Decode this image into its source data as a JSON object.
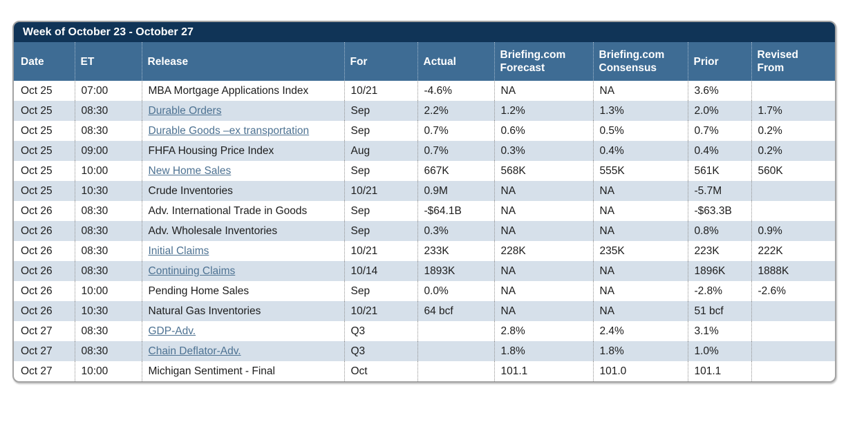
{
  "colors": {
    "title_bar": "#103457",
    "header_bg": "#3e6c94",
    "row_shaded": "#d6e0ea",
    "link": "#4d7292"
  },
  "table": {
    "title": "Week of October 23 - October 27",
    "columns": [
      "Date",
      "ET",
      "Release",
      "For",
      "Actual",
      "Briefing.com Forecast",
      "Briefing.com Consensus",
      "Prior",
      "Revised From"
    ],
    "rows": [
      {
        "date": "Oct 25",
        "et": "07:00",
        "release": "MBA Mortgage Applications Index",
        "is_link": false,
        "for": "10/21",
        "actual": "-4.6%",
        "forecast": "NA",
        "consensus": "NA",
        "prior": "3.6%",
        "revised": ""
      },
      {
        "date": "Oct 25",
        "et": "08:30",
        "release": "Durable Orders",
        "is_link": true,
        "for": "Sep",
        "actual": "2.2%",
        "forecast": "1.2%",
        "consensus": "1.3%",
        "prior": "2.0%",
        "revised": "1.7%"
      },
      {
        "date": "Oct 25",
        "et": "08:30",
        "release": "Durable Goods –ex transportation",
        "is_link": true,
        "for": "Sep",
        "actual": "0.7%",
        "forecast": "0.6%",
        "consensus": "0.5%",
        "prior": "0.7%",
        "revised": "0.2%"
      },
      {
        "date": "Oct 25",
        "et": "09:00",
        "release": "FHFA Housing Price Index",
        "is_link": false,
        "for": "Aug",
        "actual": "0.7%",
        "forecast": "0.3%",
        "consensus": "0.4%",
        "prior": "0.4%",
        "revised": "0.2%"
      },
      {
        "date": "Oct 25",
        "et": "10:00",
        "release": "New Home Sales",
        "is_link": true,
        "for": "Sep",
        "actual": "667K",
        "forecast": "568K",
        "consensus": "555K",
        "prior": "561K",
        "revised": "560K"
      },
      {
        "date": "Oct 25",
        "et": "10:30",
        "release": "Crude Inventories",
        "is_link": false,
        "for": "10/21",
        "actual": "0.9M",
        "forecast": "NA",
        "consensus": "NA",
        "prior": "-5.7M",
        "revised": ""
      },
      {
        "date": "Oct 26",
        "et": "08:30",
        "release": "Adv. International Trade in Goods",
        "is_link": false,
        "for": "Sep",
        "actual": "-$64.1B",
        "forecast": "NA",
        "consensus": "NA",
        "prior": "-$63.3B",
        "revised": ""
      },
      {
        "date": "Oct 26",
        "et": "08:30",
        "release": "Adv. Wholesale Inventories",
        "is_link": false,
        "for": "Sep",
        "actual": "0.3%",
        "forecast": "NA",
        "consensus": "NA",
        "prior": "0.8%",
        "revised": "0.9%"
      },
      {
        "date": "Oct 26",
        "et": "08:30",
        "release": "Initial Claims",
        "is_link": true,
        "for": "10/21",
        "actual": "233K",
        "forecast": "228K",
        "consensus": "235K",
        "prior": "223K",
        "revised": "222K"
      },
      {
        "date": "Oct 26",
        "et": "08:30",
        "release": "Continuing Claims",
        "is_link": true,
        "for": "10/14",
        "actual": "1893K",
        "forecast": "NA",
        "consensus": "NA",
        "prior": "1896K",
        "revised": "1888K"
      },
      {
        "date": "Oct 26",
        "et": "10:00",
        "release": "Pending Home Sales",
        "is_link": false,
        "for": "Sep",
        "actual": "0.0%",
        "forecast": "NA",
        "consensus": "NA",
        "prior": "-2.8%",
        "revised": "-2.6%"
      },
      {
        "date": "Oct 26",
        "et": "10:30",
        "release": "Natural Gas Inventories",
        "is_link": false,
        "for": "10/21",
        "actual": "64 bcf",
        "forecast": "NA",
        "consensus": "NA",
        "prior": "51 bcf",
        "revised": ""
      },
      {
        "date": "Oct 27",
        "et": "08:30",
        "release": "GDP-Adv.",
        "is_link": true,
        "for": "Q3",
        "actual": "",
        "forecast": "2.8%",
        "consensus": "2.4%",
        "prior": "3.1%",
        "revised": ""
      },
      {
        "date": "Oct 27",
        "et": "08:30",
        "release": "Chain Deflator-Adv.",
        "is_link": true,
        "for": "Q3",
        "actual": "",
        "forecast": "1.8%",
        "consensus": "1.8%",
        "prior": "1.0%",
        "revised": ""
      },
      {
        "date": "Oct 27",
        "et": "10:00",
        "release": "Michigan Sentiment - Final",
        "is_link": false,
        "for": "Oct",
        "actual": "",
        "forecast": "101.1",
        "consensus": "101.0",
        "prior": "101.1",
        "revised": ""
      }
    ]
  }
}
